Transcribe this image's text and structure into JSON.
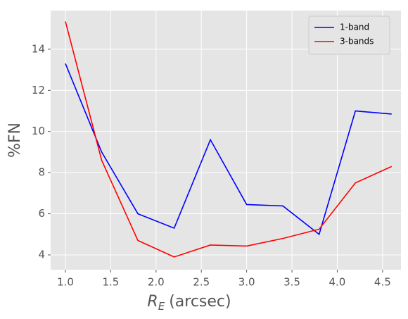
{
  "chart_data": {
    "type": "line",
    "xlabel": {
      "symbol": "R",
      "subscript": "E",
      "text": "(arcsec)"
    },
    "ylabel": "%FN",
    "x": [
      1.0,
      1.4,
      1.8,
      2.2,
      2.6,
      3.0,
      3.4,
      3.8,
      4.2,
      4.6
    ],
    "series": [
      {
        "name": "1-band",
        "color": "#0000ff",
        "values": [
          13.3,
          9.0,
          6.0,
          5.3,
          9.6,
          6.45,
          6.38,
          5.0,
          11.0,
          10.85
        ]
      },
      {
        "name": "3-bands",
        "color": "#ff0000",
        "values": [
          15.35,
          8.6,
          4.7,
          3.9,
          4.48,
          4.43,
          4.8,
          5.25,
          7.5,
          8.3
        ]
      }
    ],
    "xlim": [
      0.837,
      4.703
    ],
    "ylim": [
      3.28,
      15.88
    ],
    "xticks": [
      {
        "value": 1,
        "label": "1.0"
      },
      {
        "value": 1.5,
        "label": "1.5"
      },
      {
        "value": 2,
        "label": "2.0"
      },
      {
        "value": 2.5,
        "label": "2.5"
      },
      {
        "value": 3,
        "label": "3.0"
      },
      {
        "value": 3.5,
        "label": "3.5"
      },
      {
        "value": 4,
        "label": "4.0"
      },
      {
        "value": 4.5,
        "label": "4.5"
      }
    ],
    "yticks": [
      4,
      6,
      8,
      10,
      12,
      14
    ],
    "grid": true,
    "legend": "upper right"
  }
}
